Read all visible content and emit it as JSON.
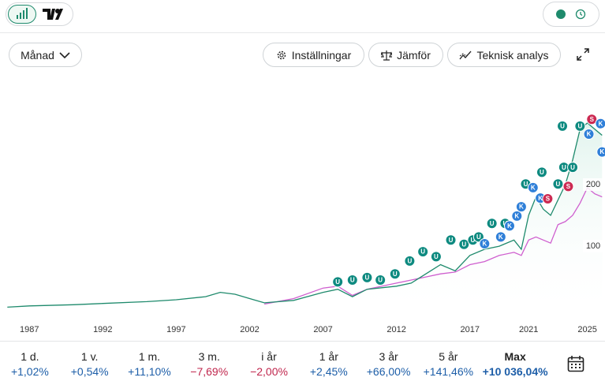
{
  "toolbar": {
    "interval": "Månad",
    "buttons": [
      "Inställningar",
      "Jämför",
      "Teknisk analys"
    ]
  },
  "chart_data": {
    "type": "line",
    "x": [
      1985.5,
      1987,
      1990,
      1992,
      1995,
      1997,
      1999,
      2000,
      2001,
      2002,
      2003,
      2005,
      2007,
      2008,
      2009,
      2010,
      2012,
      2013,
      2014,
      2015,
      2016,
      2017,
      2018,
      2019,
      2020,
      2020.5,
      2021,
      2021.5,
      2022,
      2022.5,
      2023,
      2023.5,
      2024,
      2024.5,
      2025,
      2025.5,
      2026
    ],
    "series": [
      {
        "color": "#1e8a6c",
        "values": [
          1,
          3,
          5,
          7,
          10,
          13,
          18,
          25,
          22,
          15,
          8,
          12,
          25,
          30,
          18,
          30,
          35,
          40,
          55,
          70,
          60,
          85,
          95,
          100,
          110,
          95,
          150,
          180,
          160,
          150,
          175,
          200,
          240,
          290,
          300,
          290,
          280
        ]
      },
      {
        "color": "#cf5fcf",
        "values": [
          null,
          null,
          null,
          null,
          null,
          null,
          null,
          null,
          null,
          null,
          6,
          15,
          32,
          35,
          20,
          30,
          40,
          45,
          50,
          55,
          58,
          70,
          75,
          85,
          90,
          85,
          110,
          115,
          110,
          105,
          135,
          140,
          150,
          170,
          195,
          185,
          180
        ]
      }
    ],
    "xlim": [
      1985,
      2026.2
    ],
    "xticks": [
      1987,
      1992,
      1997,
      2002,
      2007,
      2012,
      2017,
      2021,
      2025
    ],
    "ylim": [
      -19,
      387
    ],
    "yticks": [
      100,
      200
    ],
    "marker_colors": {
      "U": "#0e8a80",
      "K": "#2f7fd8",
      "S": "#cc2a52"
    },
    "markers": [
      {
        "x": 2008.0,
        "y": 42,
        "label": "U"
      },
      {
        "x": 2009.0,
        "y": 45,
        "label": "U"
      },
      {
        "x": 2010.0,
        "y": 49,
        "label": "U"
      },
      {
        "x": 2010.9,
        "y": 45,
        "label": "U"
      },
      {
        "x": 2011.9,
        "y": 55,
        "label": "U"
      },
      {
        "x": 2012.9,
        "y": 76,
        "label": "U"
      },
      {
        "x": 2013.8,
        "y": 91,
        "label": "U"
      },
      {
        "x": 2014.7,
        "y": 83,
        "label": "U"
      },
      {
        "x": 2015.7,
        "y": 110,
        "label": "U"
      },
      {
        "x": 2016.6,
        "y": 103,
        "label": "U"
      },
      {
        "x": 2017.2,
        "y": 110,
        "label": "U"
      },
      {
        "x": 2017.6,
        "y": 115,
        "label": "U"
      },
      {
        "x": 2018.0,
        "y": 104,
        "label": "K"
      },
      {
        "x": 2018.5,
        "y": 137,
        "label": "U"
      },
      {
        "x": 2019.1,
        "y": 115,
        "label": "K"
      },
      {
        "x": 2019.4,
        "y": 137,
        "label": "U"
      },
      {
        "x": 2019.7,
        "y": 133,
        "label": "K"
      },
      {
        "x": 2020.2,
        "y": 149,
        "label": "K"
      },
      {
        "x": 2020.5,
        "y": 164,
        "label": "K"
      },
      {
        "x": 2020.8,
        "y": 201,
        "label": "U"
      },
      {
        "x": 2021.3,
        "y": 195,
        "label": "K"
      },
      {
        "x": 2021.8,
        "y": 178,
        "label": "K"
      },
      {
        "x": 2021.9,
        "y": 220,
        "label": "U"
      },
      {
        "x": 2022.3,
        "y": 177,
        "label": "S"
      },
      {
        "x": 2023.0,
        "y": 201,
        "label": "U"
      },
      {
        "x": 2023.4,
        "y": 228,
        "label": "U"
      },
      {
        "x": 2023.7,
        "y": 197,
        "label": "S"
      },
      {
        "x": 2024.0,
        "y": 228,
        "label": "U"
      },
      {
        "x": 2023.3,
        "y": 295,
        "label": "U"
      },
      {
        "x": 2024.5,
        "y": 295,
        "label": "U"
      },
      {
        "x": 2025.1,
        "y": 282,
        "label": "K"
      },
      {
        "x": 2025.3,
        "y": 306,
        "label": "S"
      },
      {
        "x": 2025.9,
        "y": 299,
        "label": "K"
      },
      {
        "x": 2026.0,
        "y": 253,
        "label": "K"
      }
    ]
  },
  "periods": [
    {
      "label": "1 d.",
      "change": "+1,02%"
    },
    {
      "label": "1 v.",
      "change": "+0,54%"
    },
    {
      "label": "1 m.",
      "change": "+11,10%"
    },
    {
      "label": "3 m.",
      "change": "−7,69%"
    },
    {
      "label": "i år",
      "change": "−2,00%"
    },
    {
      "label": "1 år",
      "change": "+2,45%"
    },
    {
      "label": "3 år",
      "change": "+66,00%"
    },
    {
      "label": "5 år",
      "change": "+141,46%"
    },
    {
      "label": "Max",
      "change": "+10 036,04%"
    }
  ]
}
